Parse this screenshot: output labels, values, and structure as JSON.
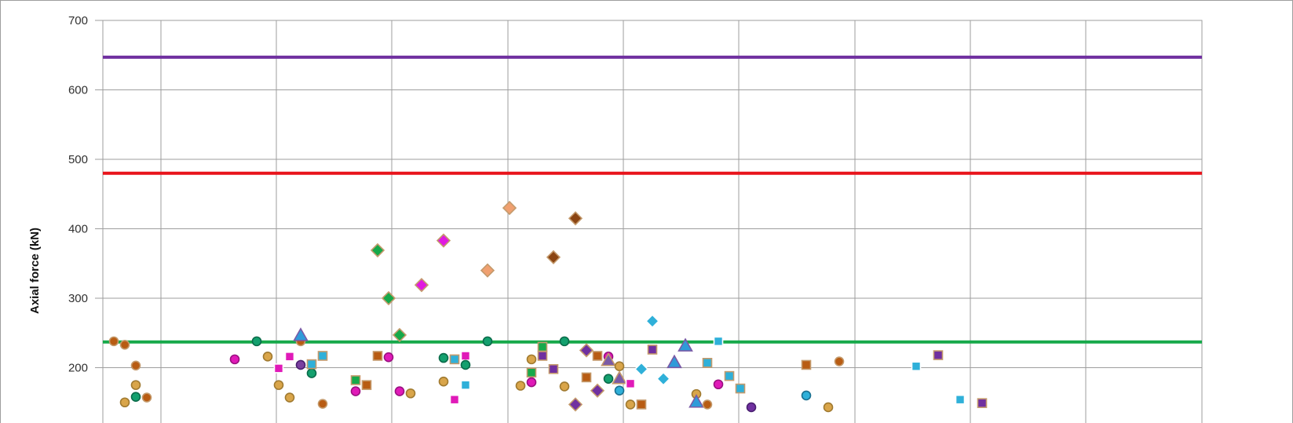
{
  "chart_data": {
    "type": "scatter",
    "ylabel": "Axial force (kN)",
    "xlabel": "",
    "ylim": [
      100,
      700
    ],
    "yticks": [
      200,
      300,
      400,
      500,
      600,
      700
    ],
    "x_range": [
      0,
      100
    ],
    "grid": true,
    "reference_lines": [
      {
        "y": 647,
        "color": "#7030A0"
      },
      {
        "y": 480,
        "color": "#E8141B"
      },
      {
        "y": 237,
        "color": "#16A94A"
      }
    ],
    "points": [
      {
        "x": 1.0,
        "y": 238,
        "shape": "circle",
        "fill": "#B85C13",
        "stroke": "#C49A6C"
      },
      {
        "x": 2.0,
        "y": 233,
        "shape": "circle",
        "fill": "#B85C13",
        "stroke": "#C49A6C"
      },
      {
        "x": 3.0,
        "y": 203,
        "shape": "circle",
        "fill": "#B85C13",
        "stroke": "#C49A6C"
      },
      {
        "x": 3.0,
        "y": 175,
        "shape": "circle",
        "fill": "#D9A54A",
        "stroke": "#A07A30"
      },
      {
        "x": 2.0,
        "y": 150,
        "shape": "circle",
        "fill": "#D9A54A",
        "stroke": "#A07A30"
      },
      {
        "x": 3.0,
        "y": 158,
        "shape": "circle",
        "fill": "#14A06E",
        "stroke": "#0B6B4A"
      },
      {
        "x": 4.0,
        "y": 157,
        "shape": "circle",
        "fill": "#B85C13",
        "stroke": "#C49A6C"
      },
      {
        "x": 12.0,
        "y": 212,
        "shape": "circle",
        "fill": "#E01AB8",
        "stroke": "#9A1080"
      },
      {
        "x": 14.0,
        "y": 238,
        "shape": "circle",
        "fill": "#14A06E",
        "stroke": "#0B6B4A"
      },
      {
        "x": 15.0,
        "y": 216,
        "shape": "circle",
        "fill": "#D9A54A",
        "stroke": "#A07A30"
      },
      {
        "x": 16.0,
        "y": 175,
        "shape": "circle",
        "fill": "#D9A54A",
        "stroke": "#A07A30"
      },
      {
        "x": 17.0,
        "y": 157,
        "shape": "circle",
        "fill": "#D9A54A",
        "stroke": "#A07A30"
      },
      {
        "x": 16.0,
        "y": 199,
        "shape": "square",
        "fill": "#E01AB8",
        "stroke": "#ffffff"
      },
      {
        "x": 17.0,
        "y": 216,
        "shape": "square",
        "fill": "#E01AB8",
        "stroke": "#ffffff"
      },
      {
        "x": 18.0,
        "y": 238,
        "shape": "circle",
        "fill": "#B85C13",
        "stroke": "#C49A6C"
      },
      {
        "x": 18.0,
        "y": 246,
        "shape": "triangle",
        "fill": "#2F9BD9",
        "stroke": "#7A5AA6"
      },
      {
        "x": 18.0,
        "y": 204,
        "shape": "circle",
        "fill": "#7A3FA0",
        "stroke": "#4A2070"
      },
      {
        "x": 19.0,
        "y": 192,
        "shape": "circle",
        "fill": "#14A06E",
        "stroke": "#0B6B4A"
      },
      {
        "x": 19.0,
        "y": 205,
        "shape": "square",
        "fill": "#2FB0D9",
        "stroke": "#C49A6C"
      },
      {
        "x": 20.0,
        "y": 217,
        "shape": "square",
        "fill": "#2FB0D9",
        "stroke": "#C49A6C"
      },
      {
        "x": 20.0,
        "y": 148,
        "shape": "circle",
        "fill": "#B85C13",
        "stroke": "#C49A6C"
      },
      {
        "x": 23.0,
        "y": 182,
        "shape": "square",
        "fill": "#16A94A",
        "stroke": "#C49A6C"
      },
      {
        "x": 23.0,
        "y": 166,
        "shape": "circle",
        "fill": "#E01AB8",
        "stroke": "#9A1080"
      },
      {
        "x": 24.0,
        "y": 175,
        "shape": "square",
        "fill": "#B85C13",
        "stroke": "#C49A6C"
      },
      {
        "x": 25.0,
        "y": 217,
        "shape": "square",
        "fill": "#B85C13",
        "stroke": "#C49A6C"
      },
      {
        "x": 25.0,
        "y": 369,
        "shape": "diamond",
        "fill": "#16A94A",
        "stroke": "#C49A6C"
      },
      {
        "x": 26.0,
        "y": 300,
        "shape": "diamond",
        "fill": "#16A94A",
        "stroke": "#C49A6C"
      },
      {
        "x": 26.0,
        "y": 215,
        "shape": "circle",
        "fill": "#E01AB8",
        "stroke": "#9A1080"
      },
      {
        "x": 27.0,
        "y": 247,
        "shape": "diamond",
        "fill": "#16A94A",
        "stroke": "#C49A6C"
      },
      {
        "x": 27.0,
        "y": 166,
        "shape": "circle",
        "fill": "#E01AB8",
        "stroke": "#9A1080"
      },
      {
        "x": 28.0,
        "y": 163,
        "shape": "circle",
        "fill": "#D9A54A",
        "stroke": "#A07A30"
      },
      {
        "x": 29.0,
        "y": 319,
        "shape": "diamond",
        "fill": "#E01AE0",
        "stroke": "#C49A6C"
      },
      {
        "x": 31.0,
        "y": 383,
        "shape": "diamond",
        "fill": "#E01AE0",
        "stroke": "#C49A6C"
      },
      {
        "x": 31.0,
        "y": 214,
        "shape": "circle",
        "fill": "#14A06E",
        "stroke": "#0B6B4A"
      },
      {
        "x": 31.0,
        "y": 180,
        "shape": "circle",
        "fill": "#D9A54A",
        "stroke": "#A07A30"
      },
      {
        "x": 32.0,
        "y": 212,
        "shape": "square",
        "fill": "#2FB0D9",
        "stroke": "#C49A6C"
      },
      {
        "x": 32.0,
        "y": 154,
        "shape": "square",
        "fill": "#E01AB8",
        "stroke": "#ffffff"
      },
      {
        "x": 33.0,
        "y": 217,
        "shape": "square",
        "fill": "#E01AB8",
        "stroke": "#ffffff"
      },
      {
        "x": 33.0,
        "y": 204,
        "shape": "circle",
        "fill": "#14A06E",
        "stroke": "#0B6B4A"
      },
      {
        "x": 33.0,
        "y": 175,
        "shape": "square",
        "fill": "#2FB0D9",
        "stroke": "#ffffff"
      },
      {
        "x": 35.0,
        "y": 340,
        "shape": "diamond",
        "fill": "#F0A070",
        "stroke": "#C49A6C"
      },
      {
        "x": 35.0,
        "y": 238,
        "shape": "circle",
        "fill": "#14A06E",
        "stroke": "#0B6B4A"
      },
      {
        "x": 37.0,
        "y": 430,
        "shape": "diamond",
        "fill": "#F0A070",
        "stroke": "#C49A6C"
      },
      {
        "x": 38.0,
        "y": 174,
        "shape": "circle",
        "fill": "#D9A54A",
        "stroke": "#A07A30"
      },
      {
        "x": 39.0,
        "y": 212,
        "shape": "circle",
        "fill": "#D9A54A",
        "stroke": "#A07A30"
      },
      {
        "x": 39.0,
        "y": 193,
        "shape": "square",
        "fill": "#16A94A",
        "stroke": "#C49A6C"
      },
      {
        "x": 39.0,
        "y": 179,
        "shape": "circle",
        "fill": "#E01AB8",
        "stroke": "#9A1080"
      },
      {
        "x": 40.0,
        "y": 230,
        "shape": "square",
        "fill": "#16A94A",
        "stroke": "#C49A6C"
      },
      {
        "x": 40.0,
        "y": 217,
        "shape": "square",
        "fill": "#7030A0",
        "stroke": "#C49A6C"
      },
      {
        "x": 41.0,
        "y": 359,
        "shape": "diamond",
        "fill": "#8B4513",
        "stroke": "#C49A6C"
      },
      {
        "x": 41.0,
        "y": 198,
        "shape": "square",
        "fill": "#7030A0",
        "stroke": "#C49A6C"
      },
      {
        "x": 42.0,
        "y": 238,
        "shape": "circle",
        "fill": "#14A06E",
        "stroke": "#0B6B4A"
      },
      {
        "x": 42.0,
        "y": 173,
        "shape": "circle",
        "fill": "#D9A54A",
        "stroke": "#A07A30"
      },
      {
        "x": 43.0,
        "y": 415,
        "shape": "diamond",
        "fill": "#8B4513",
        "stroke": "#C49A6C"
      },
      {
        "x": 43.0,
        "y": 147,
        "shape": "diamond",
        "fill": "#7030A0",
        "stroke": "#C49A6C"
      },
      {
        "x": 44.0,
        "y": 225,
        "shape": "diamond",
        "fill": "#7030A0",
        "stroke": "#C49A6C"
      },
      {
        "x": 44.0,
        "y": 186,
        "shape": "square",
        "fill": "#B85C13",
        "stroke": "#C49A6C"
      },
      {
        "x": 45.0,
        "y": 217,
        "shape": "square",
        "fill": "#B85C13",
        "stroke": "#C49A6C"
      },
      {
        "x": 45.0,
        "y": 167,
        "shape": "diamond",
        "fill": "#7030A0",
        "stroke": "#C49A6C"
      },
      {
        "x": 46.0,
        "y": 216,
        "shape": "circle",
        "fill": "#E01AB8",
        "stroke": "#9A1080"
      },
      {
        "x": 46.0,
        "y": 210,
        "shape": "triangle",
        "fill": "#7A5AA6",
        "stroke": "#C49A6C"
      },
      {
        "x": 46.0,
        "y": 184,
        "shape": "circle",
        "fill": "#14A06E",
        "stroke": "#0B6B4A"
      },
      {
        "x": 47.0,
        "y": 202,
        "shape": "circle",
        "fill": "#D9A54A",
        "stroke": "#A07A30"
      },
      {
        "x": 47.0,
        "y": 184,
        "shape": "triangle",
        "fill": "#7A5AA6",
        "stroke": "#C49A6C"
      },
      {
        "x": 47.0,
        "y": 167,
        "shape": "circle",
        "fill": "#2FB0D9",
        "stroke": "#1A7090"
      },
      {
        "x": 48.0,
        "y": 177,
        "shape": "square",
        "fill": "#E01AB8",
        "stroke": "#ffffff"
      },
      {
        "x": 48.0,
        "y": 147,
        "shape": "circle",
        "fill": "#D9A54A",
        "stroke": "#A07A30"
      },
      {
        "x": 49.0,
        "y": 198,
        "shape": "diamond",
        "fill": "#2FB0D9",
        "stroke": "#ffffff"
      },
      {
        "x": 49.0,
        "y": 147,
        "shape": "square",
        "fill": "#B85C13",
        "stroke": "#C49A6C"
      },
      {
        "x": 50.0,
        "y": 267,
        "shape": "diamond",
        "fill": "#2FB0D9",
        "stroke": "#ffffff"
      },
      {
        "x": 50.0,
        "y": 226,
        "shape": "square",
        "fill": "#7030A0",
        "stroke": "#C49A6C"
      },
      {
        "x": 51.0,
        "y": 184,
        "shape": "diamond",
        "fill": "#2FB0D9",
        "stroke": "#ffffff"
      },
      {
        "x": 52.0,
        "y": 207,
        "shape": "triangle",
        "fill": "#2F9BD9",
        "stroke": "#7A5AA6"
      },
      {
        "x": 53.0,
        "y": 231,
        "shape": "triangle",
        "fill": "#2F9BD9",
        "stroke": "#7A5AA6"
      },
      {
        "x": 54.0,
        "y": 162,
        "shape": "circle",
        "fill": "#D9A54A",
        "stroke": "#A07A30"
      },
      {
        "x": 54.0,
        "y": 150,
        "shape": "triangle",
        "fill": "#2F9BD9",
        "stroke": "#7A5AA6"
      },
      {
        "x": 55.0,
        "y": 207,
        "shape": "square",
        "fill": "#2FB0D9",
        "stroke": "#C49A6C"
      },
      {
        "x": 55.0,
        "y": 147,
        "shape": "circle",
        "fill": "#B85C13",
        "stroke": "#C49A6C"
      },
      {
        "x": 56.0,
        "y": 238,
        "shape": "square",
        "fill": "#2FB0D9",
        "stroke": "#ffffff"
      },
      {
        "x": 56.0,
        "y": 176,
        "shape": "circle",
        "fill": "#E01AB8",
        "stroke": "#9A1080"
      },
      {
        "x": 57.0,
        "y": 188,
        "shape": "square",
        "fill": "#2FB0D9",
        "stroke": "#C49A6C"
      },
      {
        "x": 58.0,
        "y": 170,
        "shape": "square",
        "fill": "#2FB0D9",
        "stroke": "#C49A6C"
      },
      {
        "x": 59.0,
        "y": 143,
        "shape": "circle",
        "fill": "#7030A0",
        "stroke": "#4A2070"
      },
      {
        "x": 64.0,
        "y": 204,
        "shape": "square",
        "fill": "#B85C13",
        "stroke": "#C49A6C"
      },
      {
        "x": 64.0,
        "y": 160,
        "shape": "circle",
        "fill": "#2FB0D9",
        "stroke": "#1A7090"
      },
      {
        "x": 66.0,
        "y": 143,
        "shape": "circle",
        "fill": "#D9A54A",
        "stroke": "#A07A30"
      },
      {
        "x": 67.0,
        "y": 209,
        "shape": "circle",
        "fill": "#B85C13",
        "stroke": "#C49A6C"
      },
      {
        "x": 74.0,
        "y": 202,
        "shape": "square",
        "fill": "#2FB0D9",
        "stroke": "#ffffff"
      },
      {
        "x": 76.0,
        "y": 218,
        "shape": "square",
        "fill": "#7030A0",
        "stroke": "#C49A6C"
      },
      {
        "x": 78.0,
        "y": 154,
        "shape": "square",
        "fill": "#2FB0D9",
        "stroke": "#ffffff"
      },
      {
        "x": 80.0,
        "y": 149,
        "shape": "square",
        "fill": "#7030A0",
        "stroke": "#C49A6C"
      }
    ]
  }
}
